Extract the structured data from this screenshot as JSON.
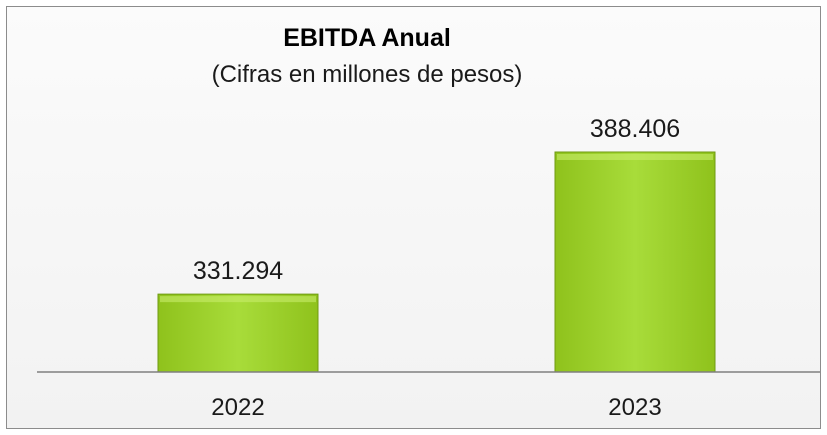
{
  "chart_data": {
    "type": "bar",
    "title": "EBITDA Anual",
    "subtitle": "(Cifras en millones de pesos)",
    "categories": [
      "2022",
      "2023"
    ],
    "values": [
      331294,
      388406
    ],
    "data_labels": [
      "331.294",
      "388.406"
    ],
    "bar_color": "#9acd32",
    "legend": "none",
    "grid": false
  }
}
